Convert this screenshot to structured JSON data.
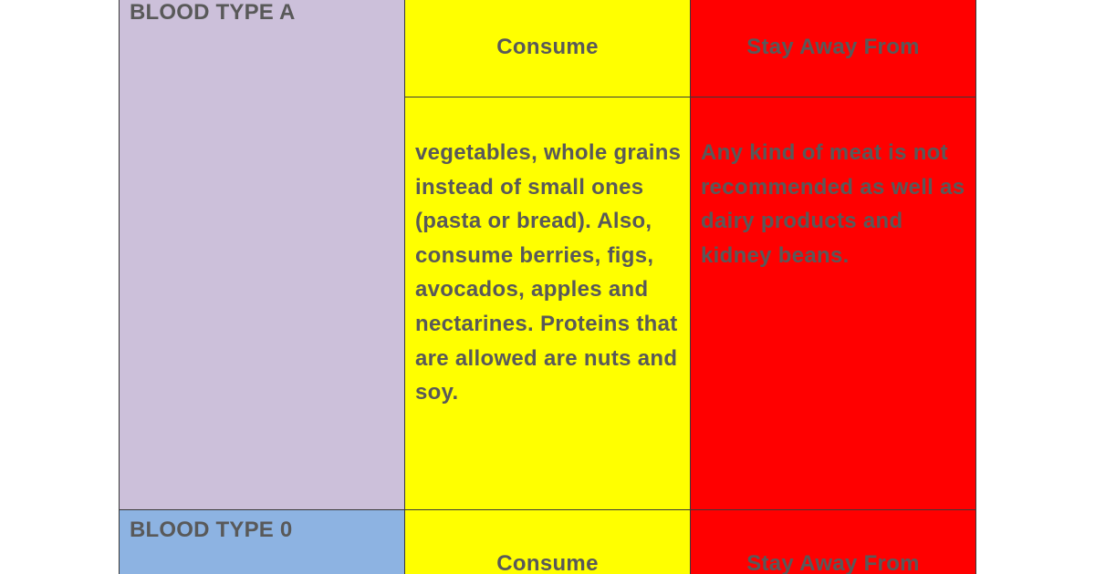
{
  "colors": {
    "purple": "#ccc0da",
    "blue": "#8db3e2",
    "yellow": "#ffff00",
    "red": "#ff0000",
    "text": "#595959"
  },
  "table": {
    "sections": [
      {
        "label": "BLOOD TYPE A",
        "consume_header": "Consume",
        "avoid_header": "Stay Away From",
        "consume_text": "vegetables, whole grains instead of small ones (pasta or bread). Also, consume berries, figs, avocados, apples and nectarines. Proteins that are allowed are nuts and soy.",
        "avoid_text": "Any kind of meat is not recommended as well as dairy products and kidney beans."
      },
      {
        "label": "BLOOD TYPE 0",
        "consume_header": "Consume",
        "avoid_header": "Stay Away From"
      }
    ]
  }
}
